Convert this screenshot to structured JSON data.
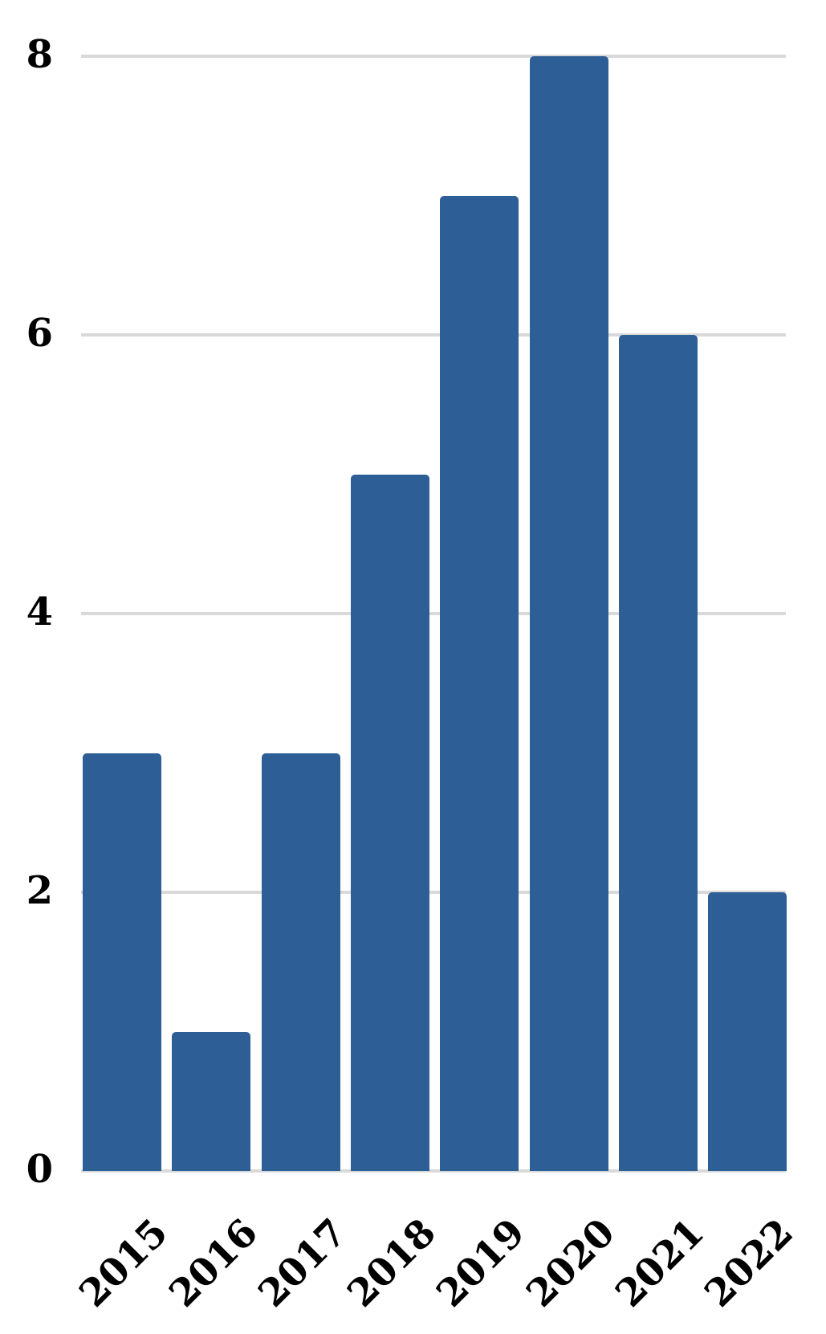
{
  "chart_data": {
    "type": "bar",
    "title": "",
    "xlabel": "",
    "ylabel": "",
    "categories": [
      "2015",
      "2016",
      "2017",
      "2018",
      "2019",
      "2020",
      "2021",
      "2022"
    ],
    "values": [
      3,
      1,
      3,
      5,
      7,
      8,
      6,
      2
    ],
    "ylim": [
      0,
      8
    ],
    "yticks": [
      0,
      2,
      4,
      6,
      8
    ],
    "grid": true,
    "legend": false,
    "colors": {
      "bar": "#2E5E96",
      "gridline": "#D9D9D9",
      "tick_label": "#000000",
      "background": "#FFFFFF"
    }
  }
}
